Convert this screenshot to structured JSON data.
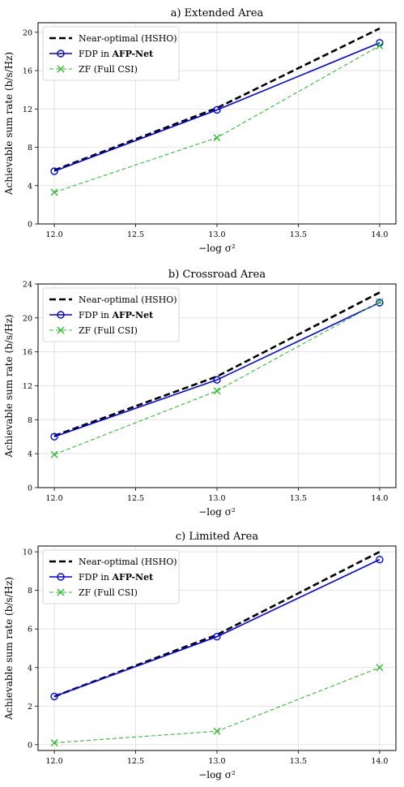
{
  "chart_data": [
    {
      "type": "line",
      "title": "a) Extended Area",
      "xlabel": "−log σ²",
      "ylabel": "Achievable sum rate (b/s/Hz)",
      "x": [
        12.0,
        13.0,
        14.0
      ],
      "xlim": [
        11.9,
        14.1
      ],
      "ylim": [
        0,
        21
      ],
      "xticks": [
        "12.0",
        "12.5",
        "13.0",
        "13.5",
        "14.0"
      ],
      "xtick_values": [
        12.0,
        12.5,
        13.0,
        13.5,
        14.0
      ],
      "yticks": [
        0,
        4,
        8,
        12,
        16,
        20
      ],
      "grid": true,
      "legend": "top-left",
      "series": [
        {
          "name": "Near-optimal (HSHO)",
          "values": [
            5.6,
            12.1,
            20.4
          ],
          "color": "#000000",
          "style": "dashed-thick",
          "marker": "none"
        },
        {
          "name_prefix": "FDP in ",
          "name_bold": "AFP-Net",
          "values": [
            5.5,
            11.9,
            18.9
          ],
          "color": "#0000ee",
          "style": "solid",
          "marker": "circle"
        },
        {
          "name": "ZF (Full CSI)",
          "values": [
            3.3,
            9.0,
            18.6
          ],
          "color": "#33bb33",
          "style": "dashed",
          "marker": "x"
        }
      ]
    },
    {
      "type": "line",
      "title": "b) Crossroad Area",
      "xlabel": "−log σ²",
      "ylabel": "Achievable sum rate (b/s/Hz)",
      "x": [
        12.0,
        13.0,
        14.0
      ],
      "xlim": [
        11.9,
        14.1
      ],
      "ylim": [
        0,
        24
      ],
      "xticks": [
        "12.0",
        "12.5",
        "13.0",
        "13.5",
        "14.0"
      ],
      "xtick_values": [
        12.0,
        12.5,
        13.0,
        13.5,
        14.0
      ],
      "yticks": [
        0,
        4,
        8,
        12,
        16,
        20,
        24
      ],
      "grid": true,
      "legend": "top-left",
      "series": [
        {
          "name": "Near-optimal (HSHO)",
          "values": [
            6.1,
            13.1,
            23.0
          ],
          "color": "#000000",
          "style": "dashed-thick",
          "marker": "none"
        },
        {
          "name_prefix": "FDP in ",
          "name_bold": "AFP-Net",
          "values": [
            6.0,
            12.7,
            21.8
          ],
          "color": "#0000ee",
          "style": "solid",
          "marker": "circle"
        },
        {
          "name": "ZF (Full CSI)",
          "values": [
            3.9,
            11.4,
            21.9
          ],
          "color": "#33bb33",
          "style": "dashed",
          "marker": "x"
        }
      ]
    },
    {
      "type": "line",
      "title": "c) Limited Area",
      "xlabel": "−log σ²",
      "ylabel": "Achievable sum rate (b/s/Hz)",
      "x": [
        12.0,
        13.0,
        14.0
      ],
      "xlim": [
        11.9,
        14.1
      ],
      "ylim": [
        -0.3,
        10.3
      ],
      "xticks": [
        "12.0",
        "12.5",
        "13.0",
        "13.5",
        "14.0"
      ],
      "xtick_values": [
        12.0,
        12.5,
        13.0,
        13.5,
        14.0
      ],
      "yticks": [
        0,
        2,
        4,
        6,
        8,
        10
      ],
      "grid": true,
      "legend": "top-left",
      "series": [
        {
          "name": "Near-optimal (HSHO)",
          "values": [
            2.5,
            5.7,
            10.0
          ],
          "color": "#000000",
          "style": "dashed-thick",
          "marker": "none"
        },
        {
          "name_prefix": "FDP in ",
          "name_bold": "AFP-Net",
          "values": [
            2.5,
            5.6,
            9.6
          ],
          "color": "#0000ee",
          "style": "solid",
          "marker": "circle"
        },
        {
          "name": "ZF (Full CSI)",
          "values": [
            0.1,
            0.7,
            4.0
          ],
          "color": "#33bb33",
          "style": "dashed",
          "marker": "x"
        }
      ]
    }
  ]
}
